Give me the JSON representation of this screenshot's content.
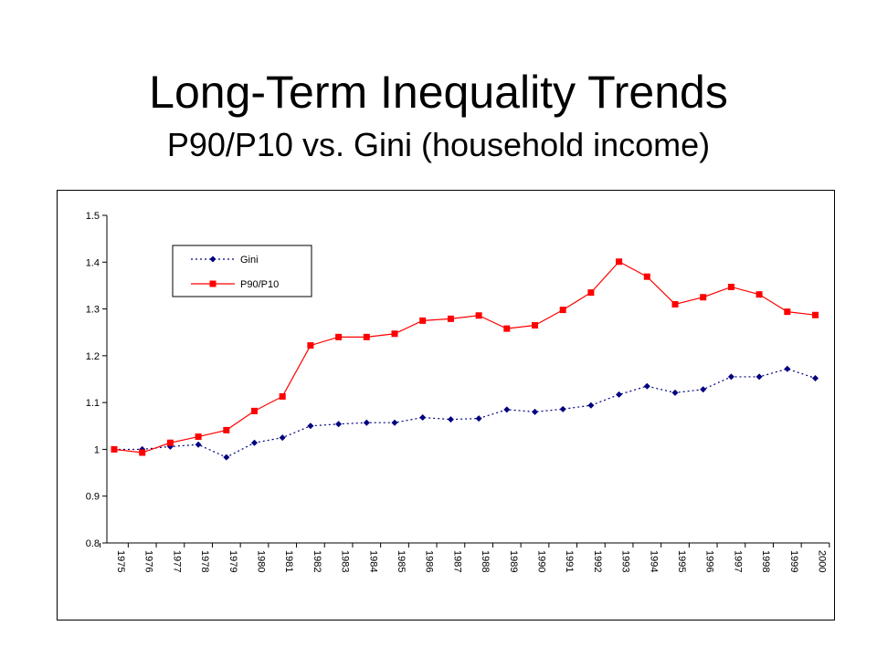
{
  "title": "Long-Term Inequality Trends",
  "subtitle": "P90/P10 vs. Gini (household income)",
  "chart_data": {
    "type": "line",
    "title": "Long-Term Inequality Trends",
    "subtitle": "P90/P10 vs. Gini (household income)",
    "xlabel": "",
    "ylabel": "",
    "categories": [
      "1975",
      "1976",
      "1977",
      "1978",
      "1979",
      "1980",
      "1981",
      "1982",
      "1983",
      "1984",
      "1985",
      "1986",
      "1987",
      "1988",
      "1989",
      "1990",
      "1991",
      "1992",
      "1993",
      "1994",
      "1995",
      "1996",
      "1997",
      "1998",
      "1999",
      "2000"
    ],
    "ylim": [
      0.8,
      1.5
    ],
    "yticks": [
      0.8,
      0.9,
      1,
      1.1,
      1.2,
      1.3,
      1.4,
      1.5
    ],
    "ytick_labels": [
      "0.8",
      "0.9",
      "1",
      "1.1",
      "1.2",
      "1.3",
      "1.4",
      "1.5"
    ],
    "grid": false,
    "legend_position": "top-left",
    "series": [
      {
        "name": "Gini",
        "color": "#000080",
        "line_style": "dotted",
        "marker": "diamond",
        "values": [
          1.0,
          1.0,
          1.006,
          1.01,
          0.983,
          1.014,
          1.025,
          1.05,
          1.054,
          1.057,
          1.057,
          1.068,
          1.064,
          1.066,
          1.085,
          1.08,
          1.086,
          1.094,
          1.117,
          1.135,
          1.121,
          1.128,
          1.155,
          1.155,
          1.172,
          1.152
        ]
      },
      {
        "name": "P90/P10",
        "color": "#ff0000",
        "line_style": "solid",
        "marker": "square",
        "values": [
          1.0,
          0.993,
          1.014,
          1.027,
          1.041,
          1.082,
          1.113,
          1.222,
          1.24,
          1.24,
          1.247,
          1.275,
          1.279,
          1.286,
          1.258,
          1.265,
          1.298,
          1.335,
          1.401,
          1.369,
          1.31,
          1.325,
          1.347,
          1.331,
          1.294,
          1.287
        ]
      }
    ]
  }
}
